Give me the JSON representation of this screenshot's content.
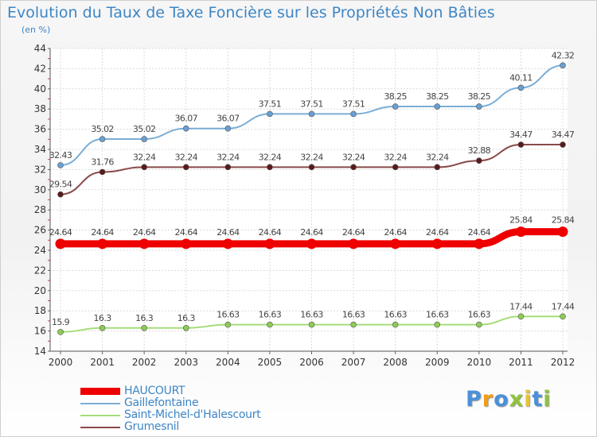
{
  "header": {
    "title": "Evolution du Taux de Taxe Foncière sur les Propriétés Non Bâties",
    "unit": "(en %)"
  },
  "chart_data": {
    "type": "line",
    "title": "Evolution du Taux de Taxe Foncière sur les Propriétés Non Bâties",
    "ylabel": "(en %)",
    "xlabel": "",
    "categories": [
      "2000",
      "2001",
      "2002",
      "2003",
      "2004",
      "2005",
      "2006",
      "2007",
      "2008",
      "2009",
      "2010",
      "2011",
      "2012"
    ],
    "ylim": [
      14,
      44
    ],
    "yticks": [
      14,
      16,
      18,
      20,
      22,
      24,
      26,
      28,
      30,
      32,
      34,
      36,
      38,
      40,
      42,
      44
    ],
    "grid": true,
    "legend_position": "bottom-left",
    "series": [
      {
        "name": "Gaillefontaine",
        "color": "#7aaed6",
        "marker": "#6a9fd3",
        "values": [
          32.43,
          35.02,
          35.02,
          36.07,
          36.07,
          37.51,
          37.51,
          37.51,
          38.25,
          38.25,
          38.25,
          40.11,
          42.32
        ],
        "labels": [
          "32.43",
          "35.02",
          "35.02",
          "36.07",
          "36.07",
          "37.51",
          "37.51",
          "37.51",
          "38.25",
          "38.25",
          "38.25",
          "40.11",
          "42.32"
        ]
      },
      {
        "name": "Grumesnil",
        "color": "#8a4a4a",
        "marker": "#5a1a1a",
        "values": [
          29.54,
          31.76,
          32.24,
          32.24,
          32.24,
          32.24,
          32.24,
          32.24,
          32.24,
          32.24,
          32.88,
          34.47,
          34.47
        ],
        "labels": [
          "29.54",
          "31.76",
          "32.24",
          "32.24",
          "32.24",
          "32.24",
          "32.24",
          "32.24",
          "32.24",
          "32.24",
          "32.88",
          "34.47",
          "34.47"
        ]
      },
      {
        "name": "HAUCOURT",
        "color": "#ee0000",
        "marker": "#ee0000",
        "values": [
          24.64,
          24.64,
          24.64,
          24.64,
          24.64,
          24.64,
          24.64,
          24.64,
          24.64,
          24.64,
          24.64,
          25.84,
          25.84
        ],
        "labels": [
          "24.64",
          "24.64",
          "24.64",
          "24.64",
          "24.64",
          "24.64",
          "24.64",
          "24.64",
          "24.64",
          "24.64",
          "24.64",
          "25.84",
          "25.84"
        ]
      },
      {
        "name": "Saint-Michel-d'Halescourt",
        "color": "#a6dd7a",
        "marker": "#8ccc55",
        "values": [
          15.9,
          16.3,
          16.3,
          16.3,
          16.63,
          16.63,
          16.63,
          16.63,
          16.63,
          16.63,
          16.63,
          17.44,
          17.44
        ],
        "labels": [
          "15.9",
          "16.3",
          "16.3",
          "16.3",
          "16.63",
          "16.63",
          "16.63",
          "16.63",
          "16.63",
          "16.63",
          "16.63",
          "17.44",
          "17.44"
        ]
      }
    ]
  },
  "legend": {
    "items": [
      {
        "label": "HAUCOURT",
        "color": "#ee0000"
      },
      {
        "label": "Gaillefontaine",
        "color": "#7aaed6"
      },
      {
        "label": "Saint-Michel-d'Halescourt",
        "color": "#a6dd7a"
      },
      {
        "label": "Grumesnil",
        "color": "#8a4a4a"
      }
    ]
  },
  "logo": {
    "text": "Proxiti",
    "letter_colors": [
      "#4a90d9",
      "#f39c12",
      "#4a90d9",
      "#8fc43a",
      "#e8c33a",
      "#4a90d9",
      "#8fc43a"
    ]
  }
}
